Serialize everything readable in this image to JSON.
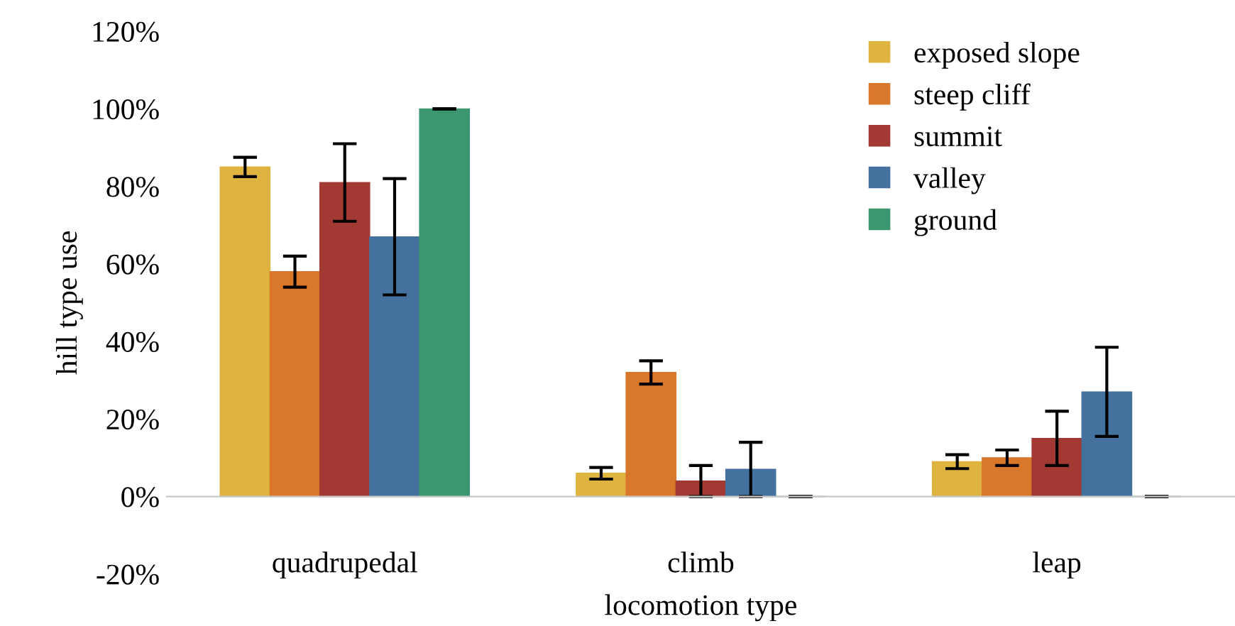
{
  "chart_data": {
    "type": "bar",
    "xlabel": "locomotion type",
    "ylabel": "hill type use",
    "categories": [
      "quadrupedal",
      "climb",
      "leap"
    ],
    "series": [
      {
        "name": "exposed slope",
        "color": "#dfb33f",
        "values": [
          85,
          6,
          9
        ],
        "errors": [
          2.5,
          1.5,
          1.8
        ]
      },
      {
        "name": "steep cliff",
        "color": "#d9772a",
        "values": [
          58,
          32,
          10
        ],
        "errors": [
          4,
          3,
          2
        ]
      },
      {
        "name": "summit",
        "color": "#a23a33",
        "values": [
          81,
          4,
          15
        ],
        "errors": [
          10,
          4,
          7
        ]
      },
      {
        "name": "valley",
        "color": "#44719e",
        "values": [
          67,
          7,
          27
        ],
        "errors": [
          15,
          7,
          11.5
        ]
      },
      {
        "name": "ground",
        "color": "#3c9670",
        "values": [
          100,
          0,
          0
        ],
        "errors": [
          0,
          0,
          0
        ]
      }
    ],
    "ylim": [
      -20,
      120
    ],
    "yticks": [
      {
        "value": -20,
        "label": "-20%"
      },
      {
        "value": 0,
        "label": "0%"
      },
      {
        "value": 20,
        "label": "20%"
      },
      {
        "value": 40,
        "label": "40%"
      },
      {
        "value": 60,
        "label": "60%"
      },
      {
        "value": 80,
        "label": "80%"
      },
      {
        "value": 100,
        "label": "100%"
      },
      {
        "value": 120,
        "label": "120%"
      }
    ],
    "grid": false,
    "legend": "top right"
  }
}
